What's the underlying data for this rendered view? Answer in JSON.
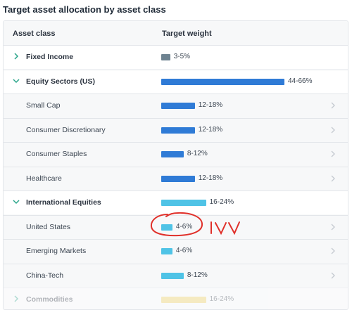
{
  "page": {
    "title": "Target asset allocation by asset class"
  },
  "table": {
    "headers": {
      "asset_class": "Asset class",
      "target_weight": "Target weight"
    },
    "rows": [
      {
        "label": "Fixed Income",
        "range": "3-5%",
        "type": "group",
        "expanded": false,
        "weight_pct": 4,
        "color": "#6e8391"
      },
      {
        "label": "Equity Sectors (US)",
        "range": "44-66%",
        "type": "group",
        "expanded": true,
        "weight_pct": 55,
        "color": "#2f7bd6"
      },
      {
        "label": "Small Cap",
        "range": "12-18%",
        "type": "sub",
        "weight_pct": 15,
        "color": "#2f7bd6"
      },
      {
        "label": "Consumer Discretionary",
        "range": "12-18%",
        "type": "sub",
        "weight_pct": 15,
        "color": "#2f7bd6"
      },
      {
        "label": "Consumer Staples",
        "range": "8-12%",
        "type": "sub",
        "weight_pct": 10,
        "color": "#2f7bd6"
      },
      {
        "label": "Healthcare",
        "range": "12-18%",
        "type": "sub",
        "weight_pct": 15,
        "color": "#2f7bd6"
      },
      {
        "label": "International Equities",
        "range": "16-24%",
        "type": "group",
        "expanded": true,
        "weight_pct": 20,
        "color": "#4fc3e6"
      },
      {
        "label": "United States",
        "range": "4-6%",
        "type": "sub",
        "weight_pct": 5,
        "color": "#4fc3e6"
      },
      {
        "label": "Emerging Markets",
        "range": "4-6%",
        "type": "sub",
        "weight_pct": 5,
        "color": "#4fc3e6"
      },
      {
        "label": "China-Tech",
        "range": "8-12%",
        "type": "sub",
        "weight_pct": 10,
        "color": "#4fc3e6"
      },
      {
        "label": "Commodities",
        "range": "16-24%",
        "type": "group",
        "expanded": false,
        "weight_pct": 20,
        "color": "#f2d35a",
        "faded": true
      }
    ]
  },
  "annotation": {
    "text": "IVV",
    "color": "#e0302a"
  }
}
